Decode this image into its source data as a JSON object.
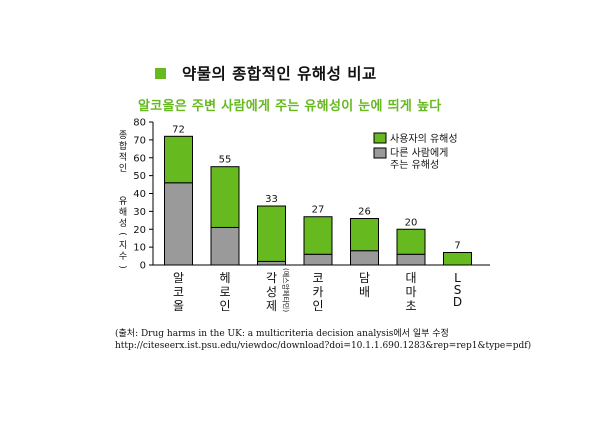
{
  "title": "약물의 종합적인 유해성 비교",
  "subtitle": "알코올은 주변 사람에게 주는 유해성이 눈에 띄게 높다",
  "source": {
    "line1": "(출처: Drug harms in the UK: a multicriteria decision analysis에서 일부 수정",
    "line2": "http://citeseerx.ist.psu.edu/viewdoc/download?doi=10.1.1.690.1283&rep=rep1&type=pdf)"
  },
  "colors": {
    "accent": "#66b91e",
    "green": "#66b91e",
    "gray": "#9a9a9a"
  },
  "chart_data": {
    "type": "bar",
    "stacked": true,
    "categories": [
      "알코올",
      "헤로인",
      "각성제",
      "코카인",
      "담배",
      "대마초",
      "LSD"
    ],
    "category_notes": [
      "",
      "",
      "(메스암페타민)",
      "",
      "",
      "",
      ""
    ],
    "series": [
      {
        "name": "다른 사람에게 주는 유해성",
        "color": "#9a9a9a",
        "values": [
          46,
          21,
          2,
          6,
          8,
          6,
          0
        ]
      },
      {
        "name": "사용자의 유해성",
        "color": "#66b91e",
        "values": [
          26,
          34,
          31,
          21,
          18,
          14,
          7
        ]
      }
    ],
    "totals": [
      72,
      55,
      33,
      27,
      26,
      20,
      7
    ],
    "ylabel": "종합적인 유해성(지수)",
    "ylim": [
      0,
      80
    ],
    "yticks": [
      0,
      10,
      20,
      30,
      40,
      50,
      60,
      70,
      80
    ],
    "legend": {
      "position": "top-right",
      "entries": [
        "사용자의 유해성",
        "다른 사람에게 주는 유해성"
      ]
    }
  }
}
